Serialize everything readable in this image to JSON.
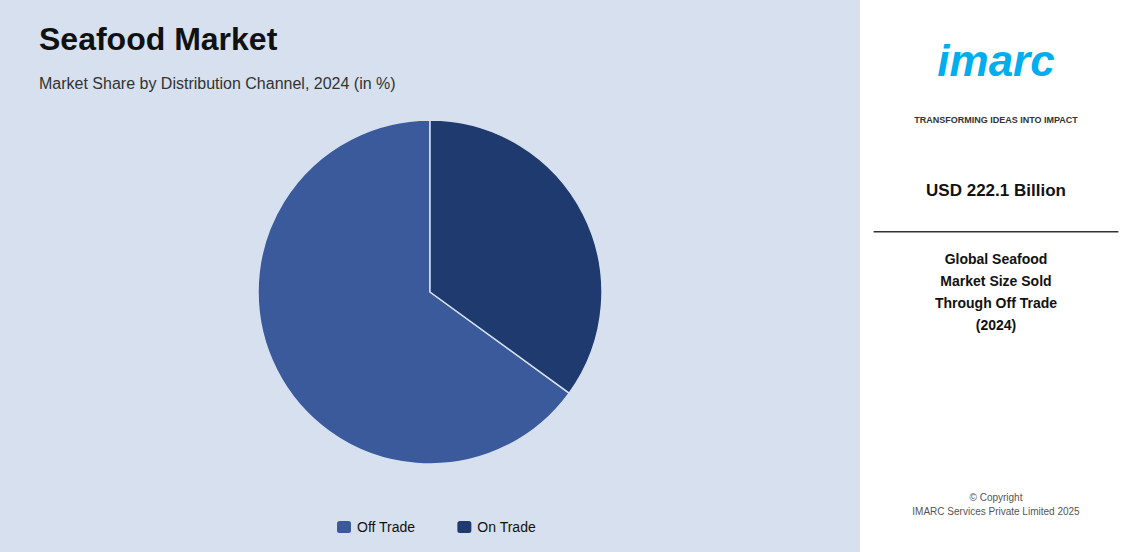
{
  "chart_data": {
    "type": "pie",
    "title": "Seafood Market",
    "subtitle": "Market Share by Distribution Channel, 2024 (in %)",
    "categories": [
      "Off Trade",
      "On Trade"
    ],
    "values": [
      65.0,
      35.0
    ],
    "colors": [
      "#3a5a9b",
      "#1e3a6e"
    ],
    "legend": "bottom",
    "annotations": [
      "imarc",
      "TRANSFORMING IDEAS INTO IMPACT",
      "USD 222.1 Billion",
      "Global Seafood\nMarket Size Sold\nThrough Off Trade\n(2024)",
      "© Copyright\nIMARC Services Private Limited 2025"
    ]
  }
}
